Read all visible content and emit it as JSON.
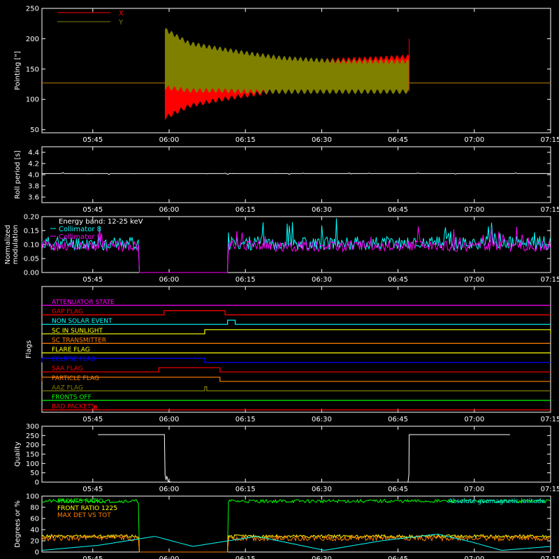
{
  "colors": {
    "background": "#000000",
    "foreground": "#ffffff"
  },
  "time_ticks": [
    "05:45",
    "06:00",
    "06:15",
    "06:30",
    "06:45",
    "07:00",
    "07:15"
  ],
  "chart_data": [
    {
      "id": "pointing",
      "type": "line",
      "ylabel": "Pointing [\"]",
      "ylim": [
        45,
        250
      ],
      "yticks": [
        50,
        100,
        150,
        200,
        250
      ],
      "xlim_minutes": [
        -15,
        120
      ],
      "legend": [
        {
          "name": "X",
          "color": "#ff0000"
        },
        {
          "name": "Y",
          "color": "#7f7f00"
        }
      ],
      "series": [
        {
          "name": "X",
          "color": "#ff0000",
          "baseline": 127,
          "active_range": [
            7,
            87
          ],
          "x": [
            7,
            15,
            25,
            35,
            45,
            55,
            65,
            75,
            87
          ],
          "upper": [
            130,
            138,
            145,
            152,
            160,
            163,
            165,
            167,
            170
          ],
          "lower": [
            70,
            90,
            100,
            108,
            116,
            122,
            127,
            130,
            132
          ]
        },
        {
          "name": "Y",
          "color": "#7f7f00",
          "baseline": 127,
          "active_range": [
            7,
            87
          ],
          "x": [
            7,
            15,
            25,
            35,
            45,
            55,
            65,
            75,
            87
          ],
          "upper": [
            215,
            192,
            183,
            175,
            168,
            165,
            162,
            162,
            162
          ],
          "lower": [
            120,
            115,
            115,
            113,
            113,
            113,
            113,
            113,
            113
          ]
        }
      ]
    },
    {
      "id": "roll",
      "type": "line",
      "ylabel": "Roll period [s]",
      "ylim": [
        3.5,
        4.5
      ],
      "yticks": [
        3.6,
        3.8,
        4.0,
        4.2,
        4.4
      ],
      "series": [
        {
          "name": "",
          "color": "#ffffff",
          "value": 4.02
        }
      ]
    },
    {
      "id": "modulation",
      "type": "line",
      "ylabel": "Normalized modulation",
      "ylim": [
        0,
        0.2
      ],
      "yticks": [
        0.0,
        0.05,
        0.1,
        0.15,
        0.2
      ],
      "annotation": "Energy band: 12-25 keV",
      "legend": [
        {
          "name": "Collimator 8",
          "color": "#00ffff"
        },
        {
          "name": "Collimator 9",
          "color": "#ff00ff"
        }
      ],
      "gap_range": [
        -1,
        11
      ],
      "series": [
        {
          "name": "Collimator 8",
          "color": "#00ffff",
          "mean": 0.105,
          "spread": 0.025
        },
        {
          "name": "Collimator 9",
          "color": "#ff00ff",
          "mean": 0.095,
          "spread": 0.02
        }
      ]
    },
    {
      "id": "flags",
      "type": "line",
      "ylabel": "Flags",
      "flags": [
        {
          "name": "ATTENUATOR STATE",
          "color": "#ff00ff",
          "high": []
        },
        {
          "name": "GAP FLAG",
          "color": "#ff0000",
          "high": [
            [
              -1,
              11
            ]
          ]
        },
        {
          "name": "NON SOLAR EVENT",
          "color": "#00ffff",
          "high": [
            [
              11.5,
              13
            ]
          ]
        },
        {
          "name": "SC IN SUNLIGHT",
          "color": "#ffff00",
          "high": [
            [
              7,
              87
            ]
          ]
        },
        {
          "name": "SC TRANSMITTER",
          "color": "#ff7f00",
          "high": []
        },
        {
          "name": "FLARE FLAG",
          "color": "#ffff00",
          "high": []
        },
        {
          "name": "ECLIPSE FLAG",
          "color": "#0000ff",
          "high": [
            [
              -120,
              7
            ],
            [
              87,
              200
            ]
          ]
        },
        {
          "name": "SAA FLAG",
          "color": "#ff0000",
          "high": [
            [
              -2,
              10
            ]
          ]
        },
        {
          "name": "PARTICLE FLAG",
          "color": "#ff7f00",
          "high": [
            [
              -120,
              10
            ]
          ]
        },
        {
          "name": "AAZ FLAG",
          "color": "#7f7f00",
          "high": [
            [
              7,
              7.4
            ],
            [
              87,
              87.4
            ]
          ]
        },
        {
          "name": "FRONTS OFF",
          "color": "#00ff00",
          "high": []
        },
        {
          "name": "BAD PACKETS",
          "color": "#ff0000",
          "high": [
            [
              -14.6,
              -14.3
            ],
            [
              115.5,
              115.8
            ]
          ]
        }
      ]
    },
    {
      "id": "quality",
      "type": "line",
      "ylabel": "Quality",
      "ylim": [
        0,
        300
      ],
      "yticks": [
        0,
        50,
        100,
        150,
        200,
        250,
        300
      ],
      "series": [
        {
          "name": "",
          "color": "#ffffff",
          "x": [
            -15,
            6.8,
            7,
            7.3,
            7.6,
            8,
            9,
            86.6,
            86.9,
            87,
            120
          ],
          "y": [
            255,
            255,
            40,
            15,
            30,
            5,
            0,
            0,
            40,
            255,
            255
          ]
        }
      ]
    },
    {
      "id": "fronts",
      "type": "line",
      "ylabel": "Degrees or %",
      "ylim": [
        0,
        100
      ],
      "yticks": [
        0,
        20,
        40,
        60,
        80,
        100
      ],
      "annotation": "Absolute geomagnetic latitude",
      "legend": [
        {
          "name": "FRONTS RATIO",
          "color": "#00ff00"
        },
        {
          "name": "FRONT RATIO 1225",
          "color": "#ffff00"
        },
        {
          "name": "MAX DET VS TOT",
          "color": "#ff7f00"
        }
      ],
      "series": [
        {
          "name": "FRONTS RATIO",
          "color": "#00ff00",
          "value": 91,
          "gap": [
            -1,
            11
          ]
        },
        {
          "name": "FRONT RATIO 1225",
          "color": "#ffff00",
          "value": 28,
          "gap": [
            -1,
            11
          ]
        },
        {
          "name": "MAX DET VS TOT",
          "color": "#ff7f00",
          "value": 25,
          "gap": [
            -1,
            11
          ]
        },
        {
          "name": "Absolute geomagnetic latitude",
          "color": "#00ffff",
          "x": [
            -15,
            0,
            15,
            25,
            42,
            55,
            60,
            75,
            90,
            99,
            107,
            120
          ],
          "y": [
            3,
            12,
            28,
            10,
            28,
            10,
            3,
            20,
            32,
            18,
            3,
            10
          ]
        }
      ]
    }
  ]
}
